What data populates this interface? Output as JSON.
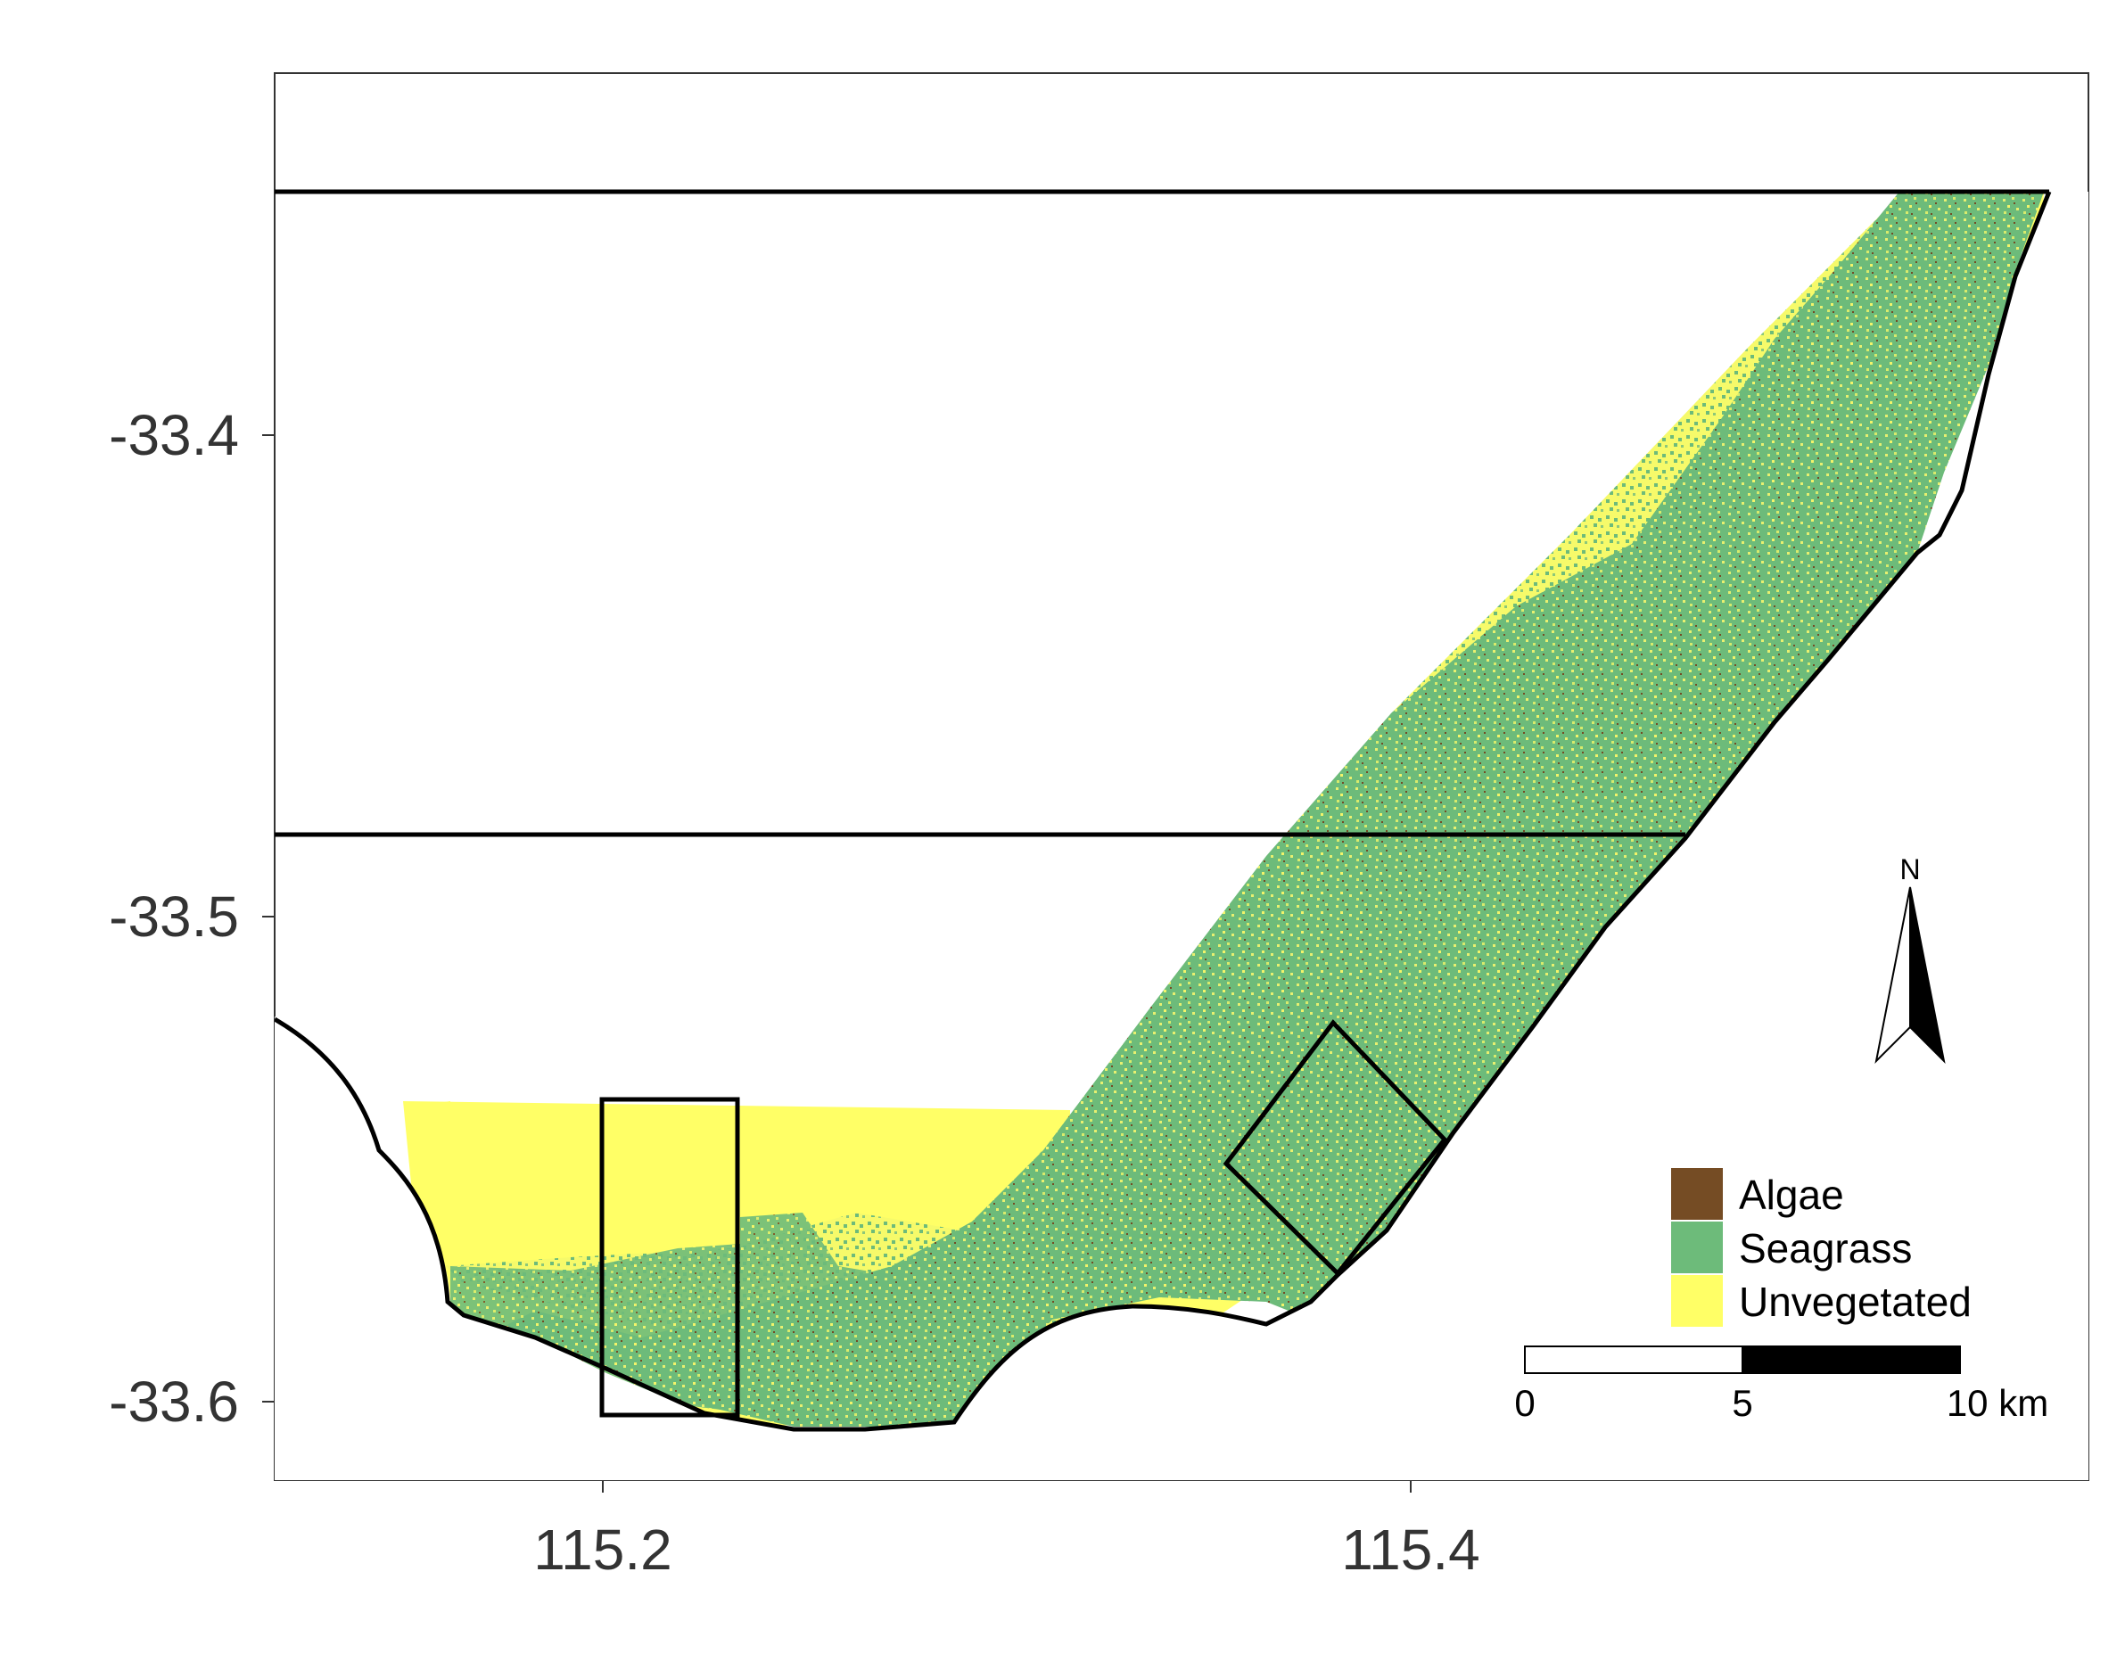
{
  "map": {
    "x_ticks": [
      "115.2",
      "115.4"
    ],
    "y_ticks": [
      "-33.4",
      "-33.5",
      "-33.6"
    ],
    "north_label": "N",
    "legend": {
      "entries": [
        {
          "label": "Algae",
          "color": "#754C24"
        },
        {
          "label": "Seagrass",
          "color": "#6DBB7A"
        },
        {
          "label": "Unvegetated",
          "color": "#FFFF66"
        }
      ]
    },
    "scale_bar": {
      "labels": [
        "0",
        "5",
        "10 km"
      ]
    },
    "colors": {
      "frame": "#333333",
      "outline": "#000000",
      "tick_text": "#333333"
    }
  }
}
